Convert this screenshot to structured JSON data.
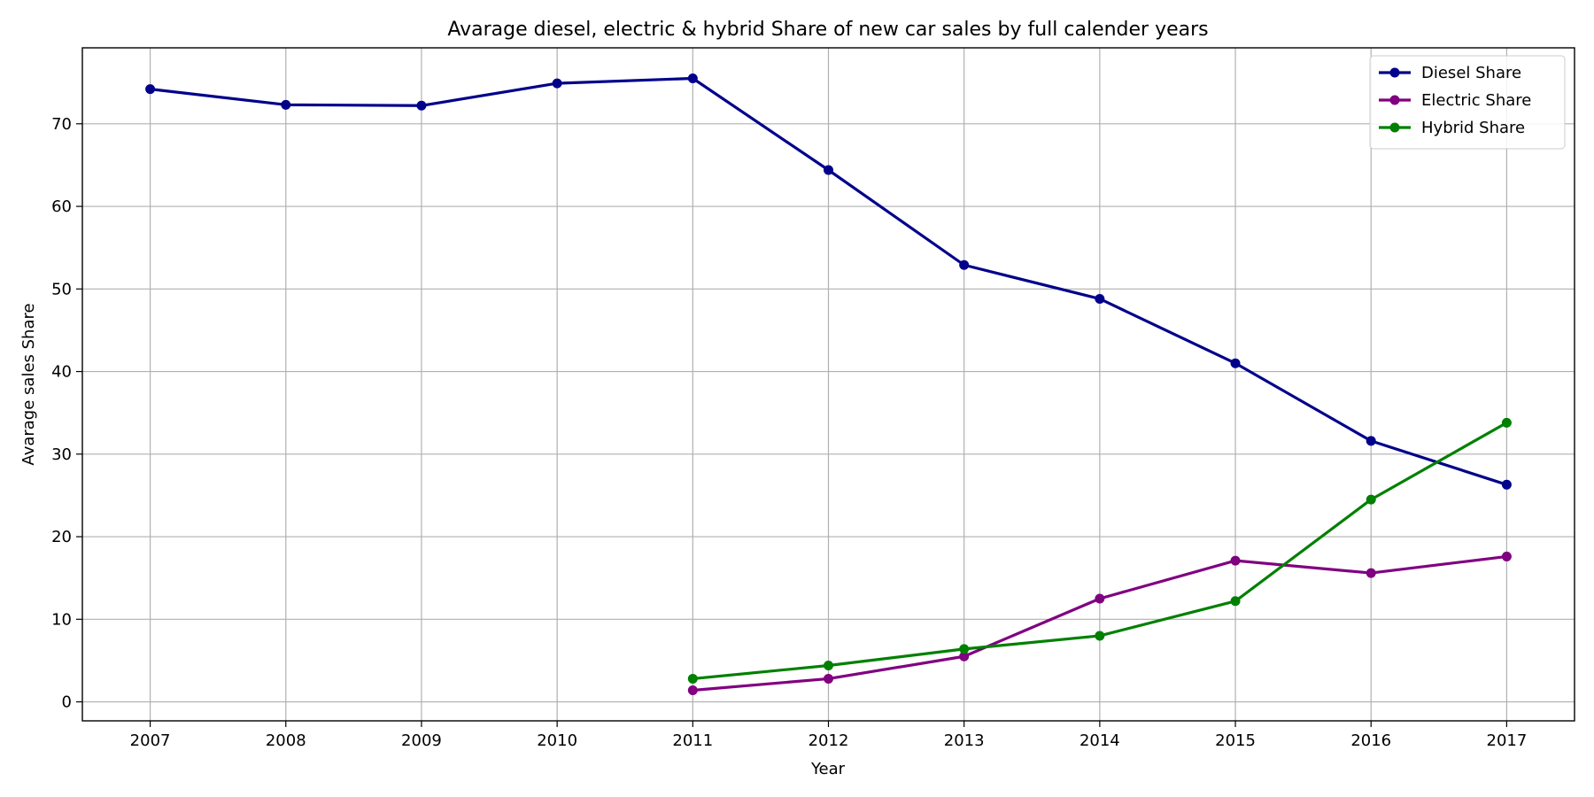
{
  "chart_data": {
    "type": "line",
    "title": "Avarage diesel, electric & hybrid Share of new car sales by full calender years",
    "xlabel": "Year",
    "ylabel": "Avarage sales Share",
    "x": [
      2007,
      2008,
      2009,
      2010,
      2011,
      2012,
      2013,
      2014,
      2015,
      2016,
      2017
    ],
    "x_tick_labels": [
      "2007",
      "2008",
      "2009",
      "2010",
      "2011",
      "2012",
      "2013",
      "2014",
      "2015",
      "2016",
      "2017"
    ],
    "xlim": [
      2006.5,
      2017.5
    ],
    "ylim": [
      -2.3,
      79.2
    ],
    "y_ticks": [
      0,
      10,
      20,
      30,
      40,
      50,
      60,
      70
    ],
    "y_tick_labels": [
      "0",
      "10",
      "20",
      "30",
      "40",
      "50",
      "60",
      "70"
    ],
    "grid": true,
    "legend_position": "top-right",
    "series": [
      {
        "name": "Diesel Share",
        "color": "#00008b",
        "values": [
          74.2,
          72.3,
          72.2,
          74.9,
          75.5,
          64.4,
          52.9,
          48.8,
          41.0,
          31.6,
          26.3
        ]
      },
      {
        "name": "Electric Share",
        "color": "#800080",
        "values": [
          null,
          null,
          null,
          null,
          1.4,
          2.8,
          5.5,
          12.5,
          17.1,
          15.6,
          17.6
        ]
      },
      {
        "name": "Hybrid Share",
        "color": "#008000",
        "values": [
          null,
          null,
          null,
          null,
          2.8,
          4.4,
          6.4,
          8.0,
          12.2,
          24.5,
          33.8
        ]
      }
    ]
  }
}
